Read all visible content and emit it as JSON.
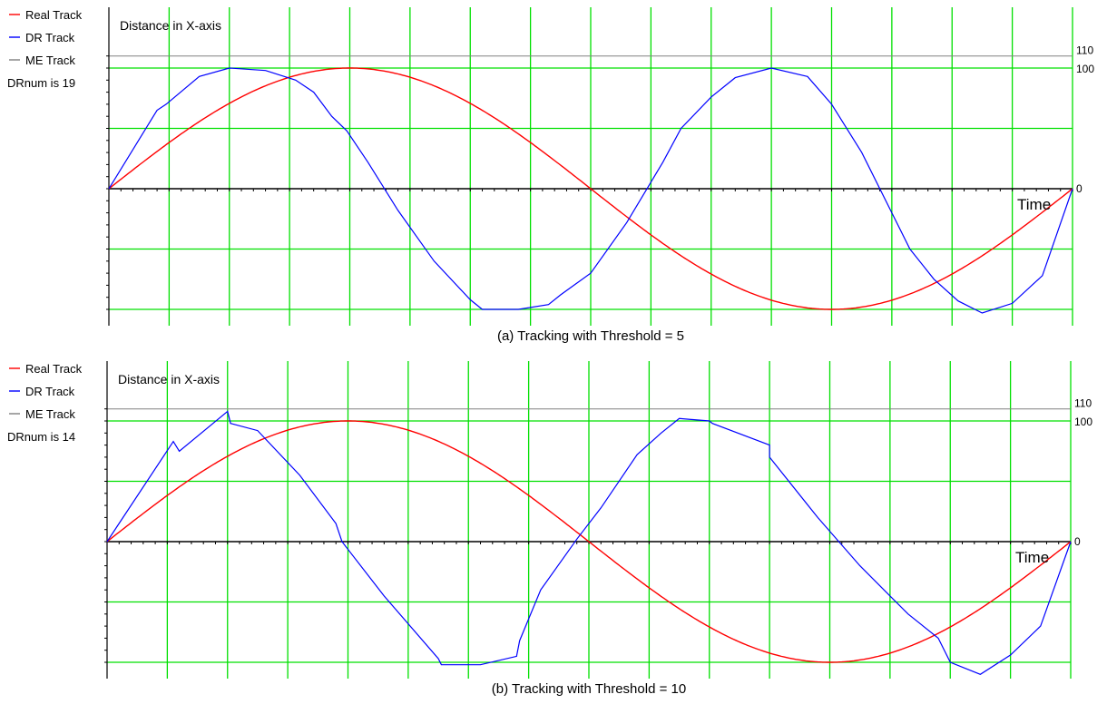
{
  "figure": {
    "colors": {
      "real": "#ff0000",
      "dr": "#0000ff",
      "me": "#808080",
      "grid": "#00e000",
      "axis": "#000000"
    }
  },
  "chart_data": [
    {
      "type": "line",
      "caption": "(a) Tracking with Threshold = 5",
      "ylabel": "Distance in X-axis",
      "xlabel": "Time",
      "legend": [
        {
          "key": "real",
          "label": "Real Track"
        },
        {
          "key": "dr",
          "label": "DR  Track"
        },
        {
          "key": "me",
          "label": "ME  Track"
        }
      ],
      "dr_count_text": "DRnum is 19",
      "y_ticks": [
        {
          "value": 110,
          "label": "110"
        },
        {
          "value": 100,
          "label": "100"
        },
        {
          "value": 0,
          "label": "0"
        }
      ],
      "ylim": [
        -100,
        110
      ],
      "x_range": [
        0,
        16
      ],
      "grid": true,
      "me_level": 110,
      "series": [
        {
          "key": "real",
          "name": "Real Track",
          "function": "100*sin(pi*x/8)"
        },
        {
          "key": "dr",
          "name": "DR  Track",
          "x": [
            0,
            0.8,
            0.95,
            1.5,
            2.0,
            2.6,
            3.1,
            3.4,
            3.7,
            3.95,
            4.3,
            4.8,
            5.4,
            6.0,
            6.2,
            6.8,
            7.3,
            7.5,
            8.0,
            8.6,
            9.2,
            9.5,
            10.0,
            10.4,
            11.0,
            11.6,
            12.0,
            12.5,
            13.0,
            13.3,
            13.7,
            14.1,
            14.5,
            15.0,
            15.5,
            16.0
          ],
          "y": [
            0,
            65,
            70,
            93,
            100,
            98,
            90,
            80,
            60,
            48,
            22,
            -18,
            -60,
            -92,
            -100,
            -100,
            -96,
            -88,
            -70,
            -28,
            22,
            50,
            76,
            92,
            100,
            93,
            70,
            30,
            -20,
            -50,
            -75,
            -93,
            -103,
            -95,
            -72,
            0
          ]
        }
      ]
    },
    {
      "type": "line",
      "caption": "(b) Tracking with Threshold = 10",
      "ylabel": "Distance in X-axis",
      "xlabel": "Time",
      "legend": [
        {
          "key": "real",
          "label": "Real Track"
        },
        {
          "key": "dr",
          "label": "DR  Track"
        },
        {
          "key": "me",
          "label": "ME  Track"
        }
      ],
      "dr_count_text": "DRnum is 14",
      "y_ticks": [
        {
          "value": 110,
          "label": "110"
        },
        {
          "value": 100,
          "label": "100"
        },
        {
          "value": 0,
          "label": "0"
        }
      ],
      "ylim": [
        -100,
        110
      ],
      "x_range": [
        0,
        16
      ],
      "grid": true,
      "me_level": 110,
      "series": [
        {
          "key": "real",
          "name": "Real Track",
          "function": "100*sin(pi*x/8)"
        },
        {
          "key": "dr",
          "name": "DR  Track",
          "x": [
            0,
            1.1,
            1.2,
            2.0,
            2.05,
            2.5,
            3.2,
            3.8,
            3.9,
            4.6,
            5.5,
            5.55,
            6.2,
            6.8,
            6.85,
            7.2,
            7.8,
            8.2,
            8.8,
            9.2,
            9.5,
            10.0,
            10.05,
            11.0,
            11.0,
            11.8,
            12.5,
            13.0,
            13.3,
            13.8,
            14.0,
            14.5,
            15.0,
            15.5,
            16.0
          ],
          "y": [
            0,
            83,
            75,
            108,
            98,
            92,
            55,
            15,
            0,
            -45,
            -97,
            -102,
            -102,
            -95,
            -82,
            -40,
            2,
            28,
            72,
            90,
            102,
            100,
            98,
            80,
            70,
            20,
            -20,
            -45,
            -60,
            -80,
            -100,
            -110,
            -94,
            -70,
            0
          ]
        }
      ]
    }
  ]
}
